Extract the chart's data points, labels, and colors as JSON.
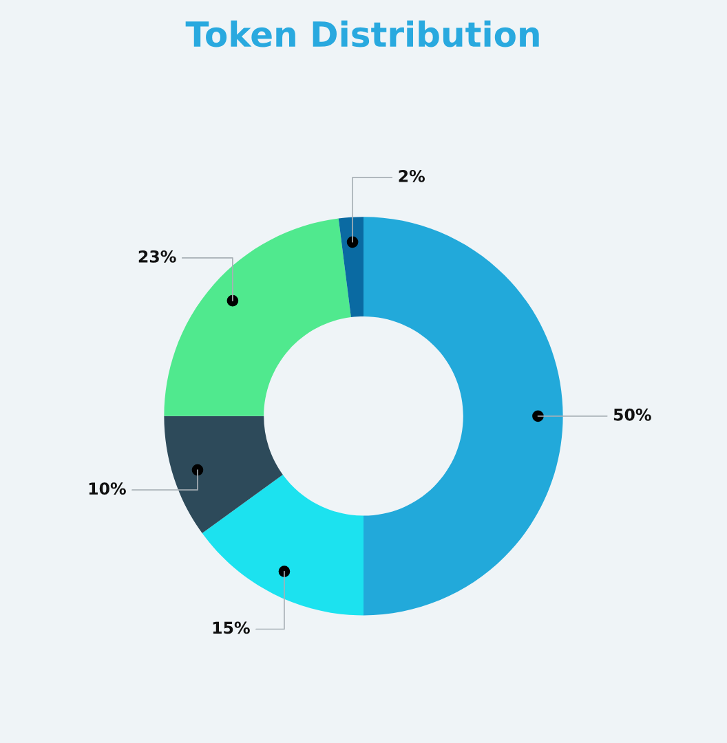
{
  "chart_data": {
    "type": "donut",
    "title": "Token Distribution",
    "categories": [
      null,
      null,
      null,
      null,
      null
    ],
    "values": [
      50,
      15,
      10,
      23,
      2
    ],
    "colors": [
      "#22a9da",
      "#1ce2ef",
      "#2d4a5a",
      "#50e98e",
      "#0a6aa2"
    ],
    "value_labels": [
      "50%",
      "15%",
      "10%",
      "23%",
      "2%"
    ]
  }
}
